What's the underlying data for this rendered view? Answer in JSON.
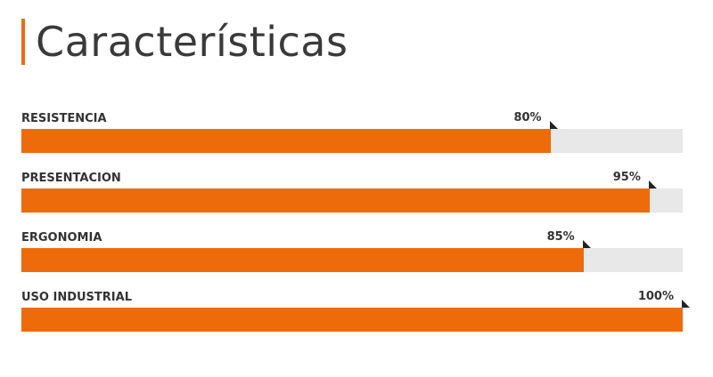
{
  "title": "Características",
  "accent_color": "#ee6b0b",
  "track_color": "#e8e8e8",
  "skills": [
    {
      "label": "RESISTENCIA",
      "value": 80,
      "value_text": "80%"
    },
    {
      "label": "PRESENTACION",
      "value": 95,
      "value_text": "95%"
    },
    {
      "label": "ERGONOMIA",
      "value": 85,
      "value_text": "85%"
    },
    {
      "label": "USO INDUSTRIAL",
      "value": 100,
      "value_text": "100%"
    }
  ]
}
